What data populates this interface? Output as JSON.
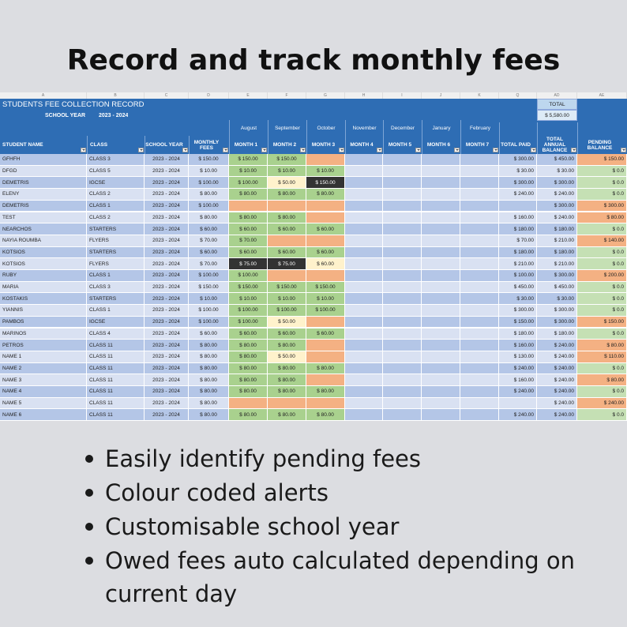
{
  "title": "Record and track monthly fees",
  "sheet": {
    "column_letters": [
      "A",
      "B",
      "C",
      "D",
      "E",
      "F",
      "G",
      "H",
      "I",
      "J",
      "K",
      "Q",
      "AD",
      "AE"
    ],
    "title": "STUDENTS FEE COLLECTION RECORD",
    "school_year_label": "SCHOOL YEAR",
    "school_year": "2023 - 2024",
    "total_label": "TOTAL",
    "total": "$ 5,580.00",
    "months": [
      "August",
      "September",
      "October",
      "November",
      "December",
      "January",
      "February"
    ],
    "headers": [
      "STUDENT NAME",
      "CLASS",
      "SCHOOL YEAR",
      "MONTHLY FEES",
      "MONTH 1",
      "MONTH 2",
      "MONTH 3",
      "MONTH 4",
      "MONTH 5",
      "MONTH 6",
      "MONTH 7",
      "TOTAL PAID",
      "TOTAL ANNUAL BALANCE",
      "PENDING BALANCE"
    ],
    "rows": [
      {
        "cells": [
          "GFHFH",
          "CLASS 3",
          "2023 - 2024",
          "$ 150.00",
          "$ 150.00",
          "$ 150.00",
          null,
          null,
          null,
          null,
          null,
          "$ 300.00",
          "$ 450.00",
          "$ 150.00"
        ],
        "fills": [
          "#a9d18e",
          "#a9d18e",
          "#f4b183",
          "#f4b183"
        ]
      },
      {
        "cells": [
          "DFGD",
          "CLASS 5",
          "2023 - 2024",
          "$ 10.00",
          "$ 10.00",
          "$ 10.00",
          "$ 10.00",
          null,
          null,
          null,
          null,
          "$ 30.00",
          "$ 30.00",
          "$ 0.0"
        ],
        "fills": [
          "#a9d18e",
          "#a9d18e",
          "#a9d18e",
          "#c5e0b4"
        ]
      },
      {
        "cells": [
          "DEMETRIS",
          "IGCSE",
          "2023 - 2024",
          "$ 100.00",
          "$ 100.00",
          "$ 50.00",
          "$ 150.00",
          null,
          null,
          null,
          null,
          "$ 300.00",
          "$ 300.00",
          "$ 0.0"
        ],
        "fills": [
          "#a9d18e",
          "#fff2cc",
          "#333333",
          "#c5e0b4"
        ]
      },
      {
        "cells": [
          "ELENY",
          "CLASS 2",
          "2023 - 2024",
          "$ 80.00",
          "$ 80.00",
          "$ 80.00",
          "$ 80.00",
          null,
          null,
          null,
          null,
          "$ 240.00",
          "$ 240.00",
          "$ 0.0"
        ],
        "fills": [
          "#a9d18e",
          "#a9d18e",
          "#a9d18e",
          "#c5e0b4"
        ]
      },
      {
        "cells": [
          "DEMETRIS",
          "CLASS 1",
          "2023 - 2024",
          "$ 100.00",
          null,
          null,
          null,
          null,
          null,
          null,
          null,
          null,
          "$ 300.00",
          "$ 300.00"
        ],
        "fills": [
          "#f4b183",
          "#f4b183",
          "#f4b183",
          "#f4b183"
        ]
      },
      {
        "cells": [
          "TEST",
          "CLASS 2",
          "2023 - 2024",
          "$ 80.00",
          "$ 80.00",
          "$ 80.00",
          null,
          null,
          null,
          null,
          null,
          "$ 160.00",
          "$ 240.00",
          "$ 80.00"
        ],
        "fills": [
          "#a9d18e",
          "#a9d18e",
          "#f4b183",
          "#f4b183"
        ]
      },
      {
        "cells": [
          "NEARCHOS",
          "STARTERS",
          "2023 - 2024",
          "$ 60.00",
          "$ 60.00",
          "$ 60.00",
          "$ 60.00",
          null,
          null,
          null,
          null,
          "$ 180.00",
          "$ 180.00",
          "$ 0.0"
        ],
        "fills": [
          "#a9d18e",
          "#a9d18e",
          "#a9d18e",
          "#c5e0b4"
        ]
      },
      {
        "cells": [
          "NAYIA ROUMBA",
          "FLYERS",
          "2023 - 2024",
          "$ 70.00",
          "$ 70.00",
          null,
          null,
          null,
          null,
          null,
          null,
          "$ 70.00",
          "$ 210.00",
          "$ 140.00"
        ],
        "fills": [
          "#a9d18e",
          "#f4b183",
          "#f4b183",
          "#f4b183"
        ]
      },
      {
        "cells": [
          "KOTSIOS",
          "STARTERS",
          "2023 - 2024",
          "$ 60.00",
          "$ 60.00",
          "$ 60.00",
          "$ 60.00",
          null,
          null,
          null,
          null,
          "$ 180.00",
          "$ 180.00",
          "$ 0.0"
        ],
        "fills": [
          "#a9d18e",
          "#a9d18e",
          "#a9d18e",
          "#c5e0b4"
        ]
      },
      {
        "cells": [
          "KOTSIOS",
          "FLYERS",
          "2023 - 2024",
          "$ 70.00",
          "$ 75.00",
          "$ 75.00",
          "$ 60.00",
          null,
          null,
          null,
          null,
          "$ 210.00",
          "$ 210.00",
          "$ 0.0"
        ],
        "fills": [
          "#333333",
          "#333333",
          "#fff2cc",
          "#c5e0b4"
        ]
      },
      {
        "cells": [
          "RUBY",
          "CLASS 1",
          "2023 - 2024",
          "$ 100.00",
          "$ 100.00",
          null,
          null,
          null,
          null,
          null,
          null,
          "$ 100.00",
          "$ 300.00",
          "$ 200.00"
        ],
        "fills": [
          "#a9d18e",
          "#f4b183",
          "#f4b183",
          "#f4b183"
        ]
      },
      {
        "cells": [
          "MARIA",
          "CLASS 3",
          "2023 - 2024",
          "$ 150.00",
          "$ 150.00",
          "$ 150.00",
          "$ 150.00",
          null,
          null,
          null,
          null,
          "$ 450.00",
          "$ 450.00",
          "$ 0.0"
        ],
        "fills": [
          "#a9d18e",
          "#a9d18e",
          "#a9d18e",
          "#c5e0b4"
        ]
      },
      {
        "cells": [
          "KOSTAKIS",
          "STARTERS",
          "2023 - 2024",
          "$ 10.00",
          "$ 10.00",
          "$ 10.00",
          "$ 10.00",
          null,
          null,
          null,
          null,
          "$ 30.00",
          "$ 30.00",
          "$ 0.0"
        ],
        "fills": [
          "#a9d18e",
          "#a9d18e",
          "#a9d18e",
          "#c5e0b4"
        ]
      },
      {
        "cells": [
          "YIANNIS",
          "CLASS 1",
          "2023 - 2024",
          "$ 100.00",
          "$ 100.00",
          "$ 100.00",
          "$ 100.00",
          null,
          null,
          null,
          null,
          "$ 300.00",
          "$ 300.00",
          "$ 0.0"
        ],
        "fills": [
          "#a9d18e",
          "#a9d18e",
          "#a9d18e",
          "#c5e0b4"
        ]
      },
      {
        "cells": [
          "PAMBOS",
          "IGCSE",
          "2023 - 2024",
          "$ 100.00",
          "$ 100.00",
          "$ 50.00",
          null,
          null,
          null,
          null,
          null,
          "$ 150.00",
          "$ 300.00",
          "$ 150.00"
        ],
        "fills": [
          "#a9d18e",
          "#fff2cc",
          "#f4b183",
          "#f4b183"
        ]
      },
      {
        "cells": [
          "MARINOS",
          "CLASS 4",
          "2023 - 2024",
          "$ 60.00",
          "$ 60.00",
          "$ 60.00",
          "$ 60.00",
          null,
          null,
          null,
          null,
          "$ 180.00",
          "$ 180.00",
          "$ 0.0"
        ],
        "fills": [
          "#a9d18e",
          "#a9d18e",
          "#a9d18e",
          "#c5e0b4"
        ]
      },
      {
        "cells": [
          "PETROS",
          "CLASS 11",
          "2023 - 2024",
          "$ 80.00",
          "$ 80.00",
          "$ 80.00",
          null,
          null,
          null,
          null,
          null,
          "$ 160.00",
          "$ 240.00",
          "$ 80.00"
        ],
        "fills": [
          "#a9d18e",
          "#a9d18e",
          "#f4b183",
          "#f4b183"
        ]
      },
      {
        "cells": [
          "NAME 1",
          "CLASS 11",
          "2023 - 2024",
          "$ 80.00",
          "$ 80.00",
          "$ 50.00",
          null,
          null,
          null,
          null,
          null,
          "$ 130.00",
          "$ 240.00",
          "$ 110.00"
        ],
        "fills": [
          "#a9d18e",
          "#fff2cc",
          "#f4b183",
          "#f4b183"
        ]
      },
      {
        "cells": [
          "NAME 2",
          "CLASS 11",
          "2023 - 2024",
          "$ 80.00",
          "$ 80.00",
          "$ 80.00",
          "$ 80.00",
          null,
          null,
          null,
          null,
          "$ 240.00",
          "$ 240.00",
          "$ 0.0"
        ],
        "fills": [
          "#a9d18e",
          "#a9d18e",
          "#a9d18e",
          "#c5e0b4"
        ]
      },
      {
        "cells": [
          "NAME 3",
          "CLASS 11",
          "2023 - 2024",
          "$ 80.00",
          "$ 80.00",
          "$ 80.00",
          null,
          null,
          null,
          null,
          null,
          "$ 160.00",
          "$ 240.00",
          "$ 80.00"
        ],
        "fills": [
          "#a9d18e",
          "#a9d18e",
          "#f4b183",
          "#f4b183"
        ]
      },
      {
        "cells": [
          "NAME 4",
          "CLASS 11",
          "2023 - 2024",
          "$ 80.00",
          "$ 80.00",
          "$ 80.00",
          "$ 80.00",
          null,
          null,
          null,
          null,
          "$ 240.00",
          "$ 240.00",
          "$ 0.0"
        ],
        "fills": [
          "#a9d18e",
          "#a9d18e",
          "#a9d18e",
          "#c5e0b4"
        ]
      },
      {
        "cells": [
          "NAME 5",
          "CLASS 11",
          "2023 - 2024",
          "$ 80.00",
          null,
          null,
          null,
          null,
          null,
          null,
          null,
          null,
          "$ 240.00",
          "$ 240.00"
        ],
        "fills": [
          "#f4b183",
          "#f4b183",
          "#f4b183",
          "#f4b183"
        ]
      },
      {
        "cells": [
          "NAME 6",
          "CLASS 11",
          "2023 - 2024",
          "$ 80.00",
          "$ 80.00",
          "$ 80.00",
          "$ 80.00",
          null,
          null,
          null,
          null,
          "$ 240.00",
          "$ 240.00",
          "$ 0.0"
        ],
        "fills": [
          "#a9d18e",
          "#a9d18e",
          "#a9d18e",
          "#c5e0b4"
        ]
      }
    ]
  },
  "bullets": [
    "Easily identify pending fees",
    "Colour coded alerts",
    "Customisable school year",
    "Owed fees auto calculated depending on current day"
  ]
}
